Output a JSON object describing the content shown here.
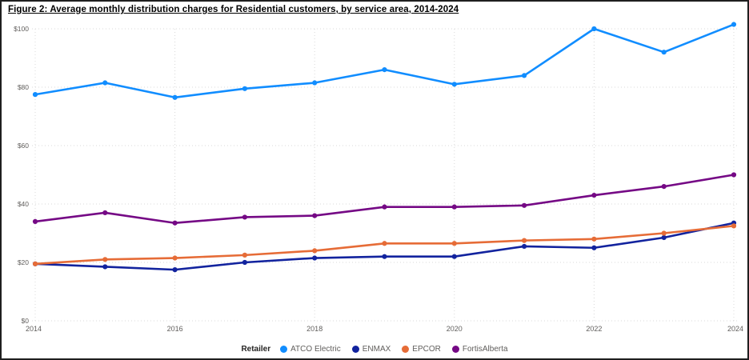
{
  "title": "Figure 2: Average monthly distribution charges for Residential customers, by service area, 2014-2024",
  "chart_data": {
    "type": "line",
    "title": "Figure 2: Average monthly distribution charges for Residential customers, by service area, 2014-2024",
    "x": [
      2014,
      2015,
      2016,
      2017,
      2018,
      2019,
      2020,
      2021,
      2022,
      2023,
      2024
    ],
    "x_tick_labels": [
      "2014",
      "2016",
      "2018",
      "2020",
      "2022",
      "2024"
    ],
    "y_tick_labels": [
      "$0",
      "$20",
      "$40",
      "$60",
      "$80",
      "$100"
    ],
    "ylim": [
      0,
      100
    ],
    "y_tick_step": 20,
    "grid": "dotted",
    "legend_position": "bottom",
    "legend_title": "Retailer",
    "series": [
      {
        "name": "ATCO Electric",
        "color": "#118DFF",
        "values": [
          77.5,
          81.5,
          76.5,
          79.5,
          81.5,
          86,
          81,
          84,
          100,
          92,
          101.5
        ]
      },
      {
        "name": "ENMAX",
        "color": "#12239E",
        "values": [
          19.5,
          18.5,
          17.5,
          20,
          21.5,
          22,
          22,
          25.5,
          25,
          28.5,
          33.5
        ]
      },
      {
        "name": "EPCOR",
        "color": "#E66C37",
        "values": [
          19.5,
          21,
          21.5,
          22.5,
          24,
          26.5,
          26.5,
          27.5,
          28,
          30,
          32.5
        ]
      },
      {
        "name": "FortisAlberta",
        "color": "#750985",
        "values": [
          34,
          37,
          33.5,
          35.5,
          36,
          39,
          39,
          39.5,
          43,
          46,
          50
        ]
      }
    ],
    "grid_color": "#D8D8D8",
    "tick_label_color": "#605E5C"
  }
}
